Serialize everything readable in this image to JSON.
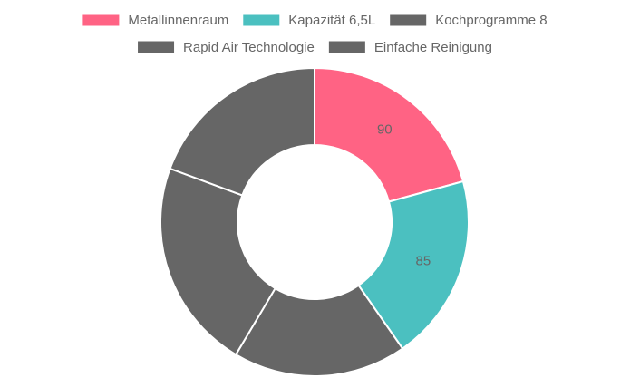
{
  "chart_data": {
    "type": "doughnut",
    "categories": [
      "Metallinnenraum",
      "Kapazität 6,5L",
      "Kochprogramme 8",
      "Rapid Air Technologie",
      "Einfache Reinigung"
    ],
    "values": [
      90,
      85,
      79,
      96,
      84
    ],
    "colors": [
      "#ff6384",
      "#4bc0c0",
      "#666666",
      "#666666",
      "#666666"
    ],
    "label_color": "#666666",
    "legend": "top"
  }
}
